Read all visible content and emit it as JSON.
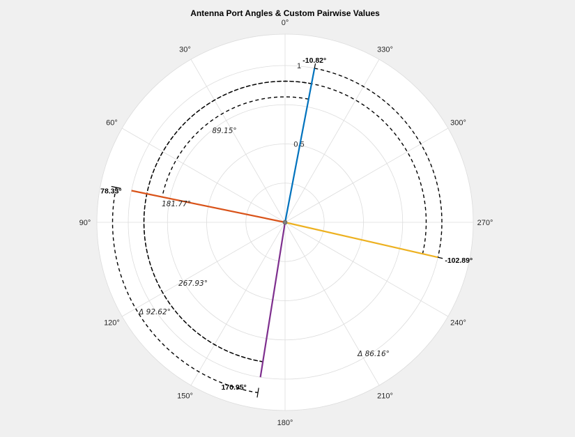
{
  "chart_data": {
    "type": "polar",
    "title": "Antenna Port Angles & Custom Pairwise Values",
    "theta_zero_location": "top",
    "theta_direction": "counterclockwise",
    "theta_ticks": [
      "0°",
      "30°",
      "60°",
      "90°",
      "120°",
      "150°",
      "180°",
      "210°",
      "240°",
      "270°",
      "300°",
      "330°"
    ],
    "theta_tick_values": [
      0,
      30,
      60,
      90,
      120,
      150,
      180,
      210,
      240,
      270,
      300,
      330
    ],
    "r_ticks": [
      "0.5",
      "1"
    ],
    "r_tick_values": [
      0.5,
      1
    ],
    "rlim": [
      0,
      1
    ],
    "grid": true,
    "ports": [
      {
        "angle": -10.82,
        "r": 1.0,
        "label": "-10.82°",
        "color": "#0072bd"
      },
      {
        "angle": 78.33,
        "r": 1.0,
        "label": "78.33°",
        "color": "#d95319"
      },
      {
        "angle": 170.95,
        "r": 1.0,
        "label": "170.95°",
        "color": "#7e2f8e"
      },
      {
        "angle": -102.89,
        "r": 1.0,
        "label": "-102.89°",
        "color": "#edb120"
      }
    ],
    "pairwise_arcs": [
      {
        "from": 0,
        "to": 1,
        "r": 0.8,
        "label": "89.15°"
      },
      {
        "from": 0,
        "to": 2,
        "r": 0.9,
        "label": "181.77°"
      },
      {
        "from": 0,
        "to": 3,
        "r": 1.0,
        "label": "267.93°"
      },
      {
        "from": 1,
        "to": 2,
        "r": 1.1,
        "label": "Δ 92.62°"
      },
      {
        "from": 2,
        "to": 3,
        "r": 0.9,
        "label": "Δ 86.16°"
      }
    ]
  }
}
